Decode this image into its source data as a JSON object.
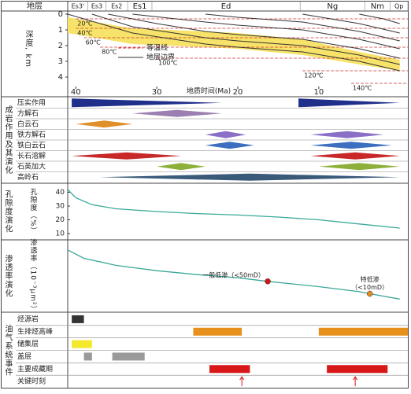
{
  "chart_data": [
    {
      "type": "burial",
      "header_label": "地层",
      "ylabel": "深度, km",
      "xlabel": "地质时间(Ma)",
      "xlim": [
        41,
        -1
      ],
      "xticks": [
        40,
        30,
        20,
        10
      ],
      "ylim": [
        -0.2,
        5.2
      ],
      "yticks": [
        0,
        1,
        2,
        3,
        4
      ],
      "strata": [
        {
          "name": "Es3'",
          "from": 41,
          "to": 38.5
        },
        {
          "name": "Es3",
          "from": 38.5,
          "to": 36.3
        },
        {
          "name": "Es2",
          "from": 36.3,
          "to": 33.6
        },
        {
          "name": "Es1",
          "from": 33.6,
          "to": 30.6
        },
        {
          "name": "Ed",
          "from": 30.6,
          "to": 12.3
        },
        {
          "name": "Ng",
          "from": 12.3,
          "to": 4.3
        },
        {
          "name": "Nm",
          "from": 4.3,
          "to": 1.2
        },
        {
          "name": "Qp",
          "from": 1.2,
          "to": -1
        }
      ],
      "band": {
        "color": "#f7e36a",
        "x": [
          41,
          33,
          24,
          20,
          12,
          5,
          0
        ],
        "top": [
          0.2,
          0.9,
          1.1,
          1.2,
          1.6,
          2.4,
          2.9
        ],
        "bottom": [
          1.2,
          1.9,
          2.1,
          2.2,
          2.6,
          3.2,
          3.6
        ]
      },
      "isotherm_color": "#d03030",
      "boundary_color": "#333333",
      "isotherms": [
        {
          "label": "20℃",
          "x": [
            40,
            -1
          ],
          "values": [
            0.3,
            0.3
          ]
        },
        {
          "label": "40℃",
          "x": [
            40,
            -1
          ],
          "values": [
            0.9,
            0.9
          ]
        },
        {
          "label": "60℃",
          "x": [
            39,
            -1
          ],
          "values": [
            1.5,
            1.5
          ]
        },
        {
          "label": "80℃",
          "x": [
            37,
            -1
          ],
          "values": [
            2.1,
            2.1
          ]
        },
        {
          "label": "100℃",
          "x": [
            30,
            -1
          ],
          "values": [
            2.8,
            2.8
          ]
        },
        {
          "label": "120℃",
          "x": [
            12,
            -1
          ],
          "values": [
            3.6,
            3.6
          ]
        },
        {
          "label": "140℃",
          "x": [
            6,
            -1
          ],
          "values": [
            4.4,
            4.4
          ]
        }
      ],
      "boundaries": [
        {
          "x": [
            41,
            33,
            24,
            20,
            12,
            5,
            0
          ],
          "values": [
            0,
            1.2,
            1.9,
            2.1,
            2.4,
            3.0,
            3.6
          ]
        },
        {
          "x": [
            38,
            33,
            24,
            20,
            12,
            5,
            0
          ],
          "values": [
            0,
            0.8,
            1.5,
            1.7,
            2.0,
            2.6,
            3.2
          ]
        },
        {
          "x": [
            36,
            30,
            24,
            20,
            12,
            5,
            0
          ],
          "values": [
            0,
            0.6,
            1.1,
            1.3,
            1.6,
            2.2,
            2.8
          ]
        },
        {
          "x": [
            33,
            24,
            20,
            12,
            5,
            0
          ],
          "values": [
            0,
            0.5,
            0.7,
            1.0,
            1.6,
            2.2
          ]
        },
        {
          "x": [
            24,
            20,
            12,
            5,
            0
          ],
          "values": [
            0,
            0.2,
            0.5,
            1.1,
            1.7
          ]
        },
        {
          "x": [
            12,
            5,
            0
          ],
          "values": [
            0,
            0.6,
            1.2
          ]
        },
        {
          "x": [
            5,
            2,
            0
          ],
          "values": [
            0,
            0.3,
            0.6
          ]
        }
      ],
      "legend": [
        "等温线",
        "地层边界"
      ]
    },
    {
      "type": "ranges",
      "section": "成岩作用及其演化",
      "xlim": [
        41,
        -1
      ],
      "rows": [
        {
          "name": "压实作用",
          "color": "#1f2f8a",
          "shape": "wedge",
          "segments": [
            [
              40.5,
              22
            ],
            [
              12.5,
              0
            ]
          ]
        },
        {
          "name": "方解石",
          "color": "#9a7fb0",
          "segments": [
            [
              33,
              22
            ]
          ]
        },
        {
          "name": "白云石",
          "color": "#e0902a",
          "segments": [
            [
              40,
              33
            ]
          ]
        },
        {
          "name": "铁方解石",
          "color": "#8b6fc6",
          "segments": [
            [
              24,
              19
            ],
            [
              11,
              2
            ]
          ]
        },
        {
          "name": "铁白云石",
          "color": "#3c6fc0",
          "segments": [
            [
              24,
              18
            ],
            [
              11,
              1
            ]
          ]
        },
        {
          "name": "长石溶解",
          "color": "#c82828",
          "segments": [
            [
              40.5,
              27
            ],
            [
              11,
              0
            ]
          ]
        },
        {
          "name": "石英加大",
          "color": "#8cb03a",
          "segments": [
            [
              30,
              24
            ],
            [
              10,
              0
            ]
          ]
        },
        {
          "name": "高岭石",
          "color": "#3a5a7a",
          "segments": [
            [
              37,
              0
            ]
          ]
        }
      ]
    },
    {
      "type": "curve",
      "section": "孔隙度演化",
      "ylabel": "孔隙度（%）",
      "xlim": [
        41,
        -1
      ],
      "ylim": [
        6,
        46
      ],
      "yticks": [
        10,
        20,
        30,
        40
      ],
      "color": "#3aa89a",
      "x": [
        41,
        40,
        38,
        35,
        30,
        25,
        20,
        15,
        10,
        5,
        0
      ],
      "values": [
        42,
        36,
        31,
        28,
        26,
        24.5,
        23.5,
        22,
        20,
        17,
        14
      ]
    },
    {
      "type": "curve",
      "section": "渗透率演化",
      "ylabel": "渗透率（10⁻³μm²）",
      "xlim": [
        41,
        -1
      ],
      "ylim": [
        1,
        10000
      ],
      "log_scale": true,
      "color": "#3aa89a",
      "x": [
        41,
        39,
        35,
        30,
        25,
        20,
        16.3,
        10,
        5,
        3.7,
        0
      ],
      "values": [
        3000,
        1000,
        400,
        200,
        120,
        80,
        50,
        25,
        13,
        10,
        5
      ],
      "points": [
        {
          "x": 16.3,
          "value": 50,
          "color": "#d01818",
          "lines": [
            "一般低渗（<50mD）"
          ]
        },
        {
          "x": 3.7,
          "value": 10,
          "color": "#e08a20",
          "lines": [
            "特低渗",
            "（<10mD）"
          ]
        }
      ]
    },
    {
      "type": "events",
      "section": "油气系统事件",
      "xlim": [
        41,
        -1
      ],
      "rows": [
        {
          "name": "烃源岩",
          "color": "#333333",
          "segments": [
            [
              40.5,
              39
            ]
          ]
        },
        {
          "name": "生排烃高峰",
          "color": "#e8901c",
          "segments": [
            [
              25.5,
              19.5
            ],
            [
              10,
              -1
            ]
          ]
        },
        {
          "name": "储集层",
          "color": "#f5e82a",
          "segments": [
            [
              40.5,
              38
            ]
          ]
        },
        {
          "name": "盖层",
          "color": "#9a9a9a",
          "segments": [
            [
              39,
              38
            ],
            [
              35.5,
              31.5
            ]
          ]
        },
        {
          "name": "主要成藏期",
          "color": "#d81818",
          "segments": [
            [
              23.5,
              18.5
            ],
            [
              9,
              1.5
            ]
          ]
        },
        {
          "name": "关键时刻",
          "color": "#d81818",
          "arrows": [
            19.5,
            5.5
          ]
        }
      ]
    }
  ]
}
